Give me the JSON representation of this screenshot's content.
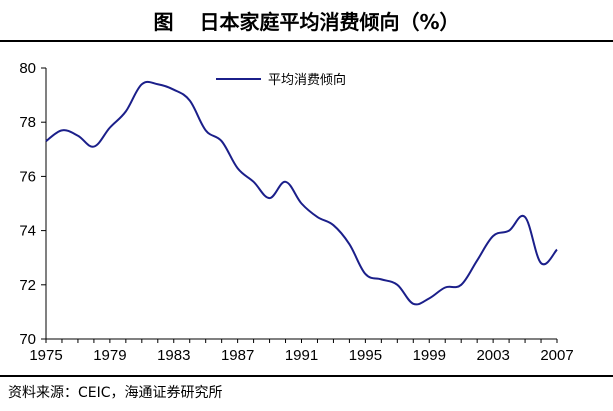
{
  "header": {
    "figure_label": "图",
    "title": "日本家庭平均消费倾向（%）"
  },
  "footer": {
    "source": "资料来源：CEIC，海通证券研究所"
  },
  "colors": {
    "series": "#1b1f8a",
    "axis": "#000000"
  },
  "chart_data": {
    "type": "line",
    "title": "日本家庭平均消费倾向（%）",
    "xlabel": "",
    "ylabel": "",
    "xlim": [
      1975,
      2007
    ],
    "ylim": [
      70,
      80
    ],
    "x_ticks": [
      1975,
      1979,
      1983,
      1987,
      1991,
      1995,
      1999,
      2003,
      2007
    ],
    "y_ticks": [
      70,
      72,
      74,
      76,
      78,
      80
    ],
    "grid": false,
    "legend": "top-center",
    "series": [
      {
        "name": "平均消费倾向",
        "color": "#1b1f8a",
        "x": [
          1975,
          1976,
          1977,
          1978,
          1979,
          1980,
          1981,
          1982,
          1983,
          1984,
          1985,
          1986,
          1987,
          1988,
          1989,
          1990,
          1991,
          1992,
          1993,
          1994,
          1995,
          1996,
          1997,
          1998,
          1999,
          2000,
          2001,
          2002,
          2003,
          2004,
          2005,
          2006,
          2007
        ],
        "y": [
          77.3,
          77.7,
          77.5,
          77.1,
          77.8,
          78.4,
          79.4,
          79.4,
          79.2,
          78.8,
          77.7,
          77.3,
          76.3,
          75.8,
          75.2,
          75.8,
          75.0,
          74.5,
          74.2,
          73.5,
          72.4,
          72.2,
          72.0,
          71.3,
          71.5,
          71.9,
          72.0,
          72.9,
          73.8,
          74.0,
          74.5,
          72.8,
          73.3
        ]
      }
    ]
  }
}
